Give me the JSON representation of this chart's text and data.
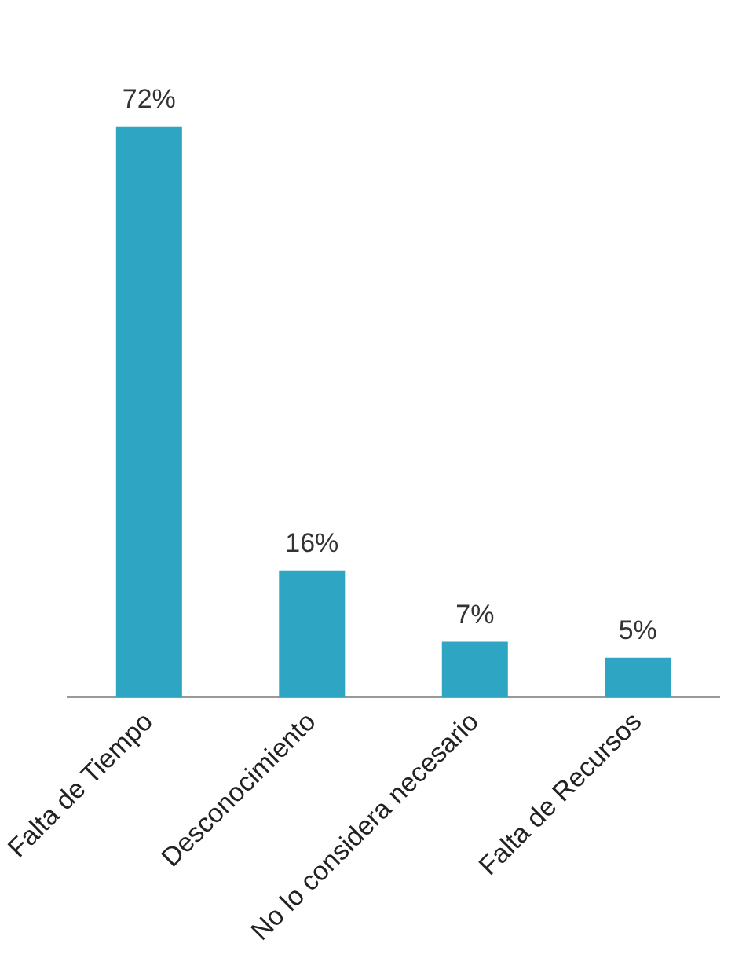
{
  "chart_data": {
    "type": "bar",
    "categories": [
      "Falta de Tiempo",
      "Desconocimiento",
      "No lo considera necesario",
      "Falta de Recursos"
    ],
    "values": [
      72,
      16,
      7,
      5
    ],
    "value_labels": [
      "72%",
      "16%",
      "7%",
      "5%"
    ],
    "color": "#2ea5c2",
    "grid": false,
    "legend": false,
    "tick_labels": "x"
  }
}
